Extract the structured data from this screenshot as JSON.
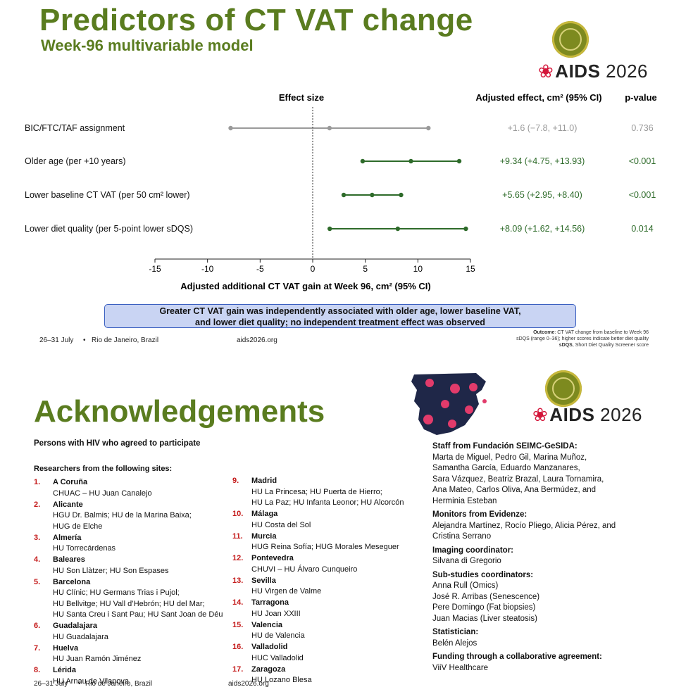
{
  "slide1": {
    "title": "Predictors of CT VAT change",
    "subtitle": "Week-96 multivariable model",
    "logo": {
      "ribbon": "❀",
      "brand": "AIDS",
      "year": "2026"
    },
    "plot_header": "Effect size",
    "col_effect_header": "Adjusted effect, cm² (95% CI)",
    "col_p_header": "p-value",
    "xlabel": "Adjusted additional CT VAT gain at Week 96, cm² (95% CI)",
    "callout_line1": "Greater CT VAT gain was independently associated with older age, lower baseline VAT,",
    "callout_line2": "and lower diet quality; no independent treatment effect was observed",
    "note_outcome_label": "Outcome",
    "note_outcome": ": CT VAT change from baseline to Week 96",
    "note_sdqs_range": "sDQS (range 0–36); higher scores indicate better diet quality",
    "note_sdqs_label": "sDQS",
    "note_sdqs_def": ", Short Diet Quality Screener score",
    "footer_dates": "26–31 July",
    "footer_sep": "•",
    "footer_place": "Rio de Janeiro, Brazil",
    "footer_url": "aids2026.org",
    "colors": {
      "green": "#2e6b2a",
      "gray": "#9a9a9a",
      "title_green": "#5a7c1f"
    }
  },
  "chart_data": {
    "type": "forest",
    "xlim": [
      -15,
      15
    ],
    "xticks": [
      "-15",
      "-10",
      "-5",
      "0",
      "5",
      "10",
      "15"
    ],
    "reference_line": 0,
    "rows": [
      {
        "label": "BIC/FTC/TAF assignment",
        "estimate": 1.6,
        "lower": -7.8,
        "upper": 11.0,
        "ci_text": "+1.6 (−7.8, +11.0)",
        "p": "0.736",
        "significant": false
      },
      {
        "label": "Older age (per +10 years)",
        "estimate": 9.34,
        "lower": 4.75,
        "upper": 13.93,
        "ci_text": "+9.34 (+4.75, +13.93)",
        "p": "<0.001",
        "significant": true
      },
      {
        "label": "Lower baseline CT VAT (per 50 cm² lower)",
        "estimate": 5.65,
        "lower": 2.95,
        "upper": 8.4,
        "ci_text": "+5.65 (+2.95, +8.40)",
        "p": "<0.001",
        "significant": true
      },
      {
        "label": "Lower diet quality (per 5-point lower sDQS)",
        "estimate": 8.09,
        "lower": 1.62,
        "upper": 14.56,
        "ci_text": "+8.09 (+1.62, +14.56)",
        "p": "0.014",
        "significant": true
      }
    ]
  },
  "slide2": {
    "title": "Acknowledgements",
    "logo": {
      "ribbon": "❀",
      "brand": "AIDS",
      "year": "2026"
    },
    "persons_heading": "Persons with HIV who agreed to participate",
    "researchers_heading": "Researchers from the following sites:",
    "sites": [
      {
        "num": "1.",
        "name": "A Coruña",
        "hospitals": [
          "CHUAC – HU Juan Canalejo"
        ]
      },
      {
        "num": "2.",
        "name": "Alicante",
        "hospitals": [
          "HGU Dr. Balmis; HU de la Marina Baixa;",
          "HUG de Elche"
        ]
      },
      {
        "num": "3.",
        "name": "Almería",
        "hospitals": [
          "HU Torrecárdenas"
        ]
      },
      {
        "num": "4.",
        "name": "Baleares",
        "hospitals": [
          "HU Son Llàtzer; HU Son Espases"
        ]
      },
      {
        "num": "5.",
        "name": "Barcelona",
        "hospitals": [
          "HU Clínic; HU Germans Trias i Pujol;",
          "HU Bellvitge; HU Vall d’Hebrón; HU del Mar;",
          "HU Santa Creu i Sant Pau; HU Sant Joan de Déu"
        ]
      },
      {
        "num": "6.",
        "name": "Guadalajara",
        "hospitals": [
          "HU Guadalajara"
        ]
      },
      {
        "num": "7.",
        "name": "Huelva",
        "hospitals": [
          "HU Juan Ramón Jiménez"
        ]
      },
      {
        "num": "8.",
        "name": "Lérida",
        "hospitals": [
          "HU Arnau de Vilanova"
        ]
      },
      {
        "num": "9.",
        "name": "Madrid",
        "hospitals": [
          "HU La Princesa; HU Puerta de Hierro;",
          "HU La Paz; HU Infanta Leonor; HU Alcorcón"
        ]
      },
      {
        "num": "10.",
        "name": "Málaga",
        "hospitals": [
          "HU Costa del Sol"
        ]
      },
      {
        "num": "11.",
        "name": "Murcia",
        "hospitals": [
          "HUG Reina Sofía; HUG Morales Meseguer"
        ]
      },
      {
        "num": "12.",
        "name": "Pontevedra",
        "hospitals": [
          "CHUVI – HU Álvaro Cunqueiro"
        ]
      },
      {
        "num": "13.",
        "name": "Sevilla",
        "hospitals": [
          "HU Virgen de Valme"
        ]
      },
      {
        "num": "14.",
        "name": "Tarragona",
        "hospitals": [
          "HU Joan XXIII"
        ]
      },
      {
        "num": "15.",
        "name": "Valencia",
        "hospitals": [
          "HU de Valencia"
        ]
      },
      {
        "num": "16.",
        "name": "Valladolid",
        "hospitals": [
          "HUC Valladolid"
        ]
      },
      {
        "num": "17.",
        "name": "Zaragoza",
        "hospitals": [
          "HU Lozano Blesa"
        ]
      }
    ],
    "staff_blocks": [
      {
        "heading": "Staff from Fundación SEIMC-GeSIDA:",
        "lines": [
          "Marta de Miguel, Pedro Gil, Marina Muñoz,",
          "Samantha García, Eduardo Manzanares,",
          "Sara Vázquez, Beatriz Brazal, Laura Tornamira,",
          "Ana Mateo, Carlos Oliva, Ana Bermúdez, and",
          "Herminia Esteban"
        ]
      },
      {
        "heading": "Monitors from Evidenze:",
        "lines": [
          "Alejandra Martínez, Rocío Pliego, Alicia Pérez, and",
          "Cristina Serrano"
        ]
      },
      {
        "heading": "Imaging coordinator:",
        "lines": [
          "Silvana di Gregorio"
        ]
      },
      {
        "heading": "Sub-studies coordinators:",
        "lines": [
          "Anna Rull (Omics)",
          "José R. Arribas (Senescence)",
          "Pere Domingo (Fat biopsies)",
          "Juan Macias (Liver steatosis)"
        ]
      },
      {
        "heading": "Statistician:",
        "lines": [
          "Belén Alejos"
        ]
      },
      {
        "heading": "Funding through a collaborative agreement:",
        "lines": [
          "ViiV Healthcare"
        ]
      }
    ],
    "footer_dates": "26–31 July",
    "footer_sep": "•",
    "footer_place": "Rio de Janeiro, Brazil",
    "footer_url": "aids2026.org",
    "colors": {
      "site_number": "#c41a1a",
      "map_dark": "#1f2748",
      "map_pink": "#e23b6b"
    }
  }
}
